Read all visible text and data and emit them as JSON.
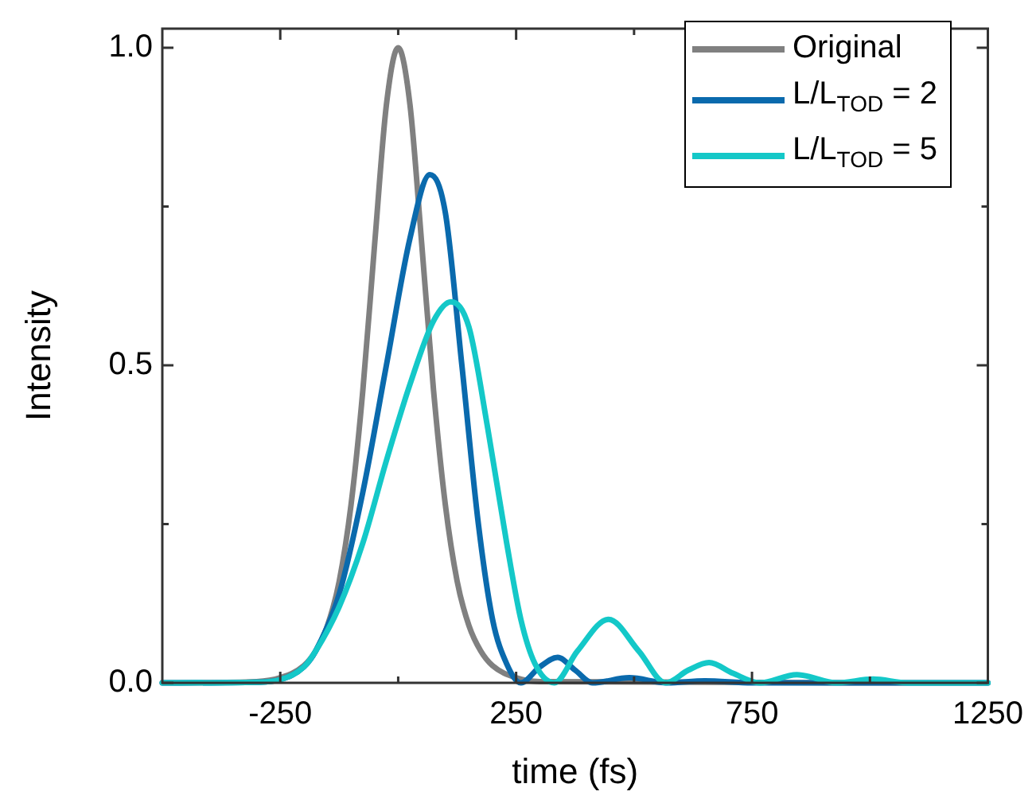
{
  "chart_data": {
    "type": "line",
    "xlabel": "time (fs)",
    "ylabel": "Intensity",
    "xlim": [
      -500,
      1250
    ],
    "ylim": [
      0,
      1.03
    ],
    "xticks": [
      -250,
      {
        "value": 0,
        "label": null
      },
      250,
      {
        "value": 500,
        "label": null
      },
      750,
      {
        "value": 1000,
        "label": null
      },
      1250
    ],
    "yticks": [
      {
        "value": 0,
        "label": "0.0"
      },
      {
        "value": 0.25,
        "label": null
      },
      {
        "value": 0.5,
        "label": "0.5"
      },
      {
        "value": 0.75,
        "label": null
      },
      {
        "value": 1,
        "label": "1.0"
      }
    ],
    "grid": false,
    "legend": "top right",
    "marker": "none",
    "line_style": "solid",
    "series": [
      {
        "name": "Original",
        "color": "#808080",
        "x": [
          -500,
          -300,
          -250,
          -200,
          -175,
          -150,
          -125,
          -100,
          -75,
          -50,
          -25,
          0,
          25,
          50,
          75,
          100,
          125,
          150,
          175,
          200,
          250,
          300,
          1250
        ],
        "values": [
          0,
          0.002,
          0.008,
          0.027,
          0.05,
          0.09,
          0.16,
          0.28,
          0.46,
          0.69,
          0.91,
          1,
          0.91,
          0.69,
          0.46,
          0.28,
          0.16,
          0.09,
          0.05,
          0.027,
          0.008,
          0.002,
          0
        ]
      },
      {
        "name": "L/L$_{TOD}$ = 2",
        "color": "#0a6aad",
        "x": [
          -500,
          -300,
          -250,
          -200,
          -175,
          -125,
          -75,
          -25,
          25,
          67,
          100,
          135,
          170,
          200,
          230,
          260,
          300,
          338,
          375,
          412,
          490,
          570,
          650,
          750,
          1250
        ],
        "values": [
          0,
          0.001,
          0.005,
          0.025,
          0.05,
          0.14,
          0.3,
          0.5,
          0.7,
          0.8,
          0.74,
          0.5,
          0.25,
          0.1,
          0.03,
          0,
          0.025,
          0.04,
          0.02,
          0,
          0.008,
          0,
          0.003,
          0,
          0
        ]
      },
      {
        "name": "L/L$_{TOD}$ = 5",
        "color": "#14c8c8",
        "x": [
          -500,
          -300,
          -250,
          -200,
          -175,
          -125,
          -75,
          -25,
          25,
          75,
          112,
          150,
          190,
          230,
          260,
          290,
          331,
          380,
          446,
          510,
          567,
          615,
          659,
          710,
          767,
          845,
          930,
          1007,
          1080,
          1250
        ],
        "values": [
          0,
          0.001,
          0.005,
          0.025,
          0.05,
          0.12,
          0.22,
          0.35,
          0.47,
          0.57,
          0.6,
          0.56,
          0.4,
          0.22,
          0.1,
          0.03,
          0,
          0.05,
          0.1,
          0.05,
          0,
          0.02,
          0.032,
          0.015,
          0,
          0.013,
          0,
          0.006,
          0,
          0
        ]
      }
    ]
  }
}
